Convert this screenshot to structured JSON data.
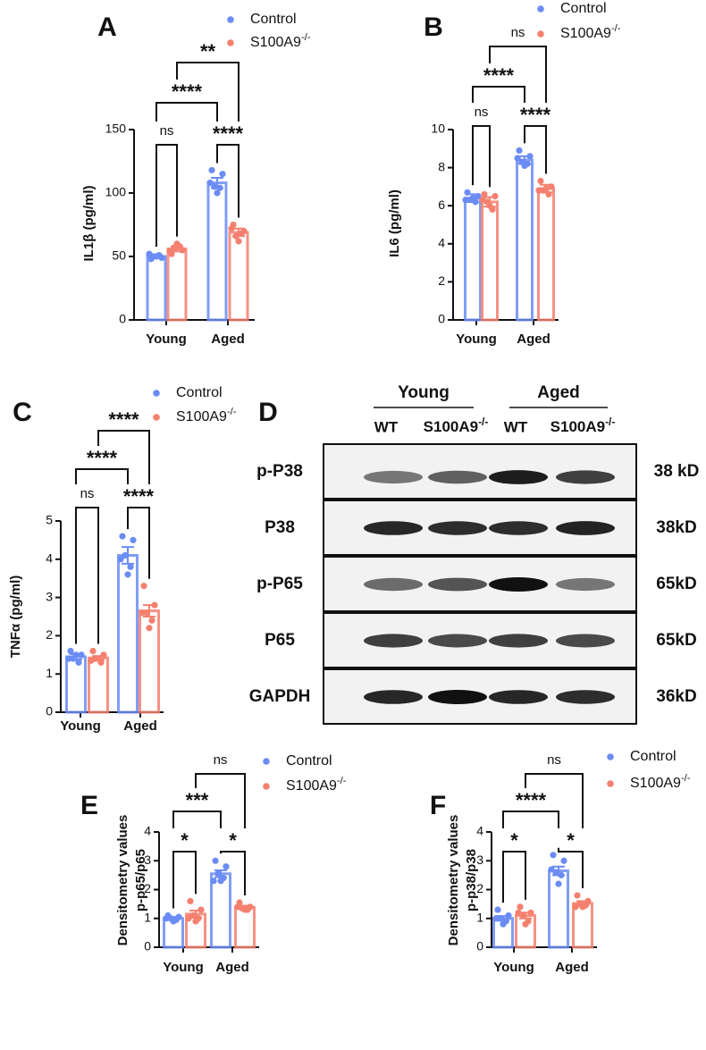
{
  "chart_data": [
    {
      "type": "bar",
      "panel": "A",
      "ylabel": "IL1β (pg/ml)",
      "categories": [
        "Young",
        "Aged"
      ],
      "ylim": [
        0,
        150
      ],
      "yticks": [
        0,
        50,
        100,
        150
      ],
      "series": [
        {
          "name": "Control",
          "color": "#6b8cf5",
          "values": [
            50,
            108
          ],
          "errors": [
            1,
            4
          ],
          "points": [
            [
              48,
              49,
              50,
              51,
              50,
              52
            ],
            [
              118,
              115,
              105,
              104,
              100,
              108
            ]
          ]
        },
        {
          "name": "S100A9-/-",
          "color": "#f5806f",
          "values": [
            56,
            69
          ],
          "errors": [
            2,
            3
          ],
          "points": [
            [
              52,
              55,
              57,
              58,
              60,
              54
            ],
            [
              75,
              70,
              66,
              68,
              62,
              72
            ]
          ]
        }
      ],
      "significance": {
        "young_pair": "ns",
        "aged_pair": "****",
        "control_pair": "****",
        "knockout_pair": "**"
      }
    },
    {
      "type": "bar",
      "panel": "B",
      "ylabel": "IL6 (pg/ml)",
      "categories": [
        "Young",
        "Aged"
      ],
      "ylim": [
        0,
        10
      ],
      "yticks": [
        0,
        2,
        4,
        6,
        8,
        10
      ],
      "series": [
        {
          "name": "Control",
          "color": "#6b8cf5",
          "values": [
            6.4,
            8.4
          ],
          "errors": [
            0.2,
            0.2
          ],
          "points": [
            [
              6.7,
              6.5,
              6.3,
              6.2,
              6.4,
              6.3
            ],
            [
              8.9,
              8.6,
              8.3,
              8.2,
              8.1,
              8.5
            ]
          ]
        },
        {
          "name": "S100A9-/-",
          "color": "#f5806f",
          "values": [
            6.2,
            6.9
          ],
          "errors": [
            0.25,
            0.2
          ],
          "points": [
            [
              6.6,
              6.5,
              6.2,
              5.8,
              6.0,
              6.3
            ],
            [
              7.3,
              7.0,
              6.8,
              6.6,
              6.9,
              6.8
            ]
          ]
        }
      ],
      "significance": {
        "young_pair": "ns",
        "aged_pair": "****",
        "control_pair": "****",
        "knockout_pair": "ns"
      }
    },
    {
      "type": "bar",
      "panel": "C",
      "ylabel": "TNFα (pg/ml)",
      "categories": [
        "Young",
        "Aged"
      ],
      "ylim": [
        0,
        5
      ],
      "yticks": [
        0,
        1,
        2,
        3,
        4,
        5
      ],
      "series": [
        {
          "name": "Control",
          "color": "#6b8cf5",
          "values": [
            1.45,
            4.1
          ],
          "errors": [
            0.07,
            0.22
          ],
          "points": [
            [
              1.6,
              1.5,
              1.4,
              1.3,
              1.5,
              1.4
            ],
            [
              4.6,
              4.5,
              4.1,
              3.8,
              3.6,
              4.0
            ]
          ]
        },
        {
          "name": "S100A9-/-",
          "color": "#f5806f",
          "values": [
            1.42,
            2.65
          ],
          "errors": [
            0.05,
            0.15
          ],
          "points": [
            [
              1.6,
              1.5,
              1.4,
              1.3,
              1.4,
              1.35
            ],
            [
              3.3,
              2.8,
              2.6,
              2.4,
              2.2,
              2.6
            ]
          ]
        }
      ],
      "significance": {
        "young_pair": "ns",
        "aged_pair": "****",
        "control_pair": "****",
        "knockout_pair": "****"
      }
    },
    {
      "type": "bar",
      "panel": "E",
      "ylabel": [
        "Densitometry values",
        "p-p65/p65"
      ],
      "categories": [
        "Young",
        "Aged"
      ],
      "ylim": [
        0,
        4
      ],
      "yticks": [
        0,
        1,
        2,
        3,
        4
      ],
      "series": [
        {
          "name": "Control",
          "color": "#6b8cf5",
          "values": [
            1.0,
            2.55
          ],
          "errors": [
            0.05,
            0.12
          ],
          "points": [
            [
              1.1,
              1.05,
              1.0,
              0.95,
              0.9,
              1.0
            ],
            [
              3.0,
              2.8,
              2.55,
              2.4,
              2.3,
              2.3
            ]
          ]
        },
        {
          "name": "S100A9-/-",
          "color": "#f5806f",
          "values": [
            1.15,
            1.38
          ],
          "errors": [
            0.12,
            0.06
          ],
          "points": [
            [
              1.6,
              1.3,
              1.1,
              1.0,
              0.9,
              1.0
            ],
            [
              1.55,
              1.4,
              1.35,
              1.3,
              1.3,
              1.4
            ]
          ]
        }
      ],
      "significance": {
        "young_pair": "*",
        "aged_pair": "*",
        "control_pair": "***",
        "knockout_pair": "ns"
      }
    },
    {
      "type": "bar",
      "panel": "F",
      "ylabel": [
        "Densitometry values",
        "p-p38/p38"
      ],
      "categories": [
        "Young",
        "Aged"
      ],
      "ylim": [
        0,
        4
      ],
      "yticks": [
        0,
        1,
        2,
        3,
        4
      ],
      "series": [
        {
          "name": "Control",
          "color": "#6b8cf5",
          "values": [
            1.0,
            2.65
          ],
          "errors": [
            0.08,
            0.15
          ],
          "points": [
            [
              1.3,
              1.1,
              1.0,
              0.9,
              0.8,
              1.0
            ],
            [
              3.2,
              3.0,
              2.6,
              2.5,
              2.2,
              2.7
            ]
          ]
        },
        {
          "name": "S100A9-/-",
          "color": "#f5806f",
          "values": [
            1.1,
            1.52
          ],
          "errors": [
            0.1,
            0.08
          ],
          "points": [
            [
              1.4,
              1.2,
              1.1,
              0.9,
              0.8,
              1.2
            ],
            [
              1.8,
              1.6,
              1.5,
              1.45,
              1.4,
              1.4
            ]
          ]
        }
      ],
      "significance": {
        "young_pair": "*",
        "aged_pair": "*",
        "control_pair": "****",
        "knockout_pair": "ns"
      }
    }
  ],
  "blot": {
    "panel": "D",
    "groups": [
      "Young",
      "Aged"
    ],
    "lanes": [
      "WT",
      "S100A9-/-",
      "WT",
      "S100A9-/-"
    ],
    "rows": [
      {
        "protein": "p-P38",
        "size": "38 kD"
      },
      {
        "protein": "P38",
        "size": "38kD"
      },
      {
        "protein": "p-P65",
        "size": "65kD"
      },
      {
        "protein": "P65",
        "size": "65kD"
      },
      {
        "protein": "GAPDH",
        "size": "36kD"
      }
    ]
  }
}
